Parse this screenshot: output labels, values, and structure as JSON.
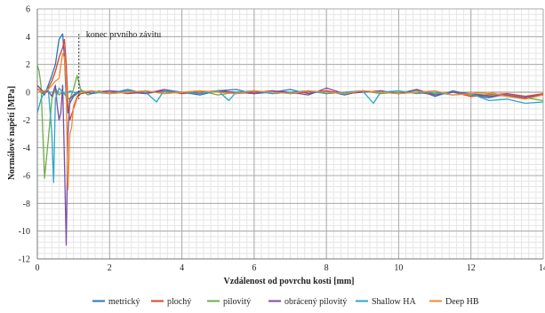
{
  "chart_data": {
    "type": "line",
    "title": "",
    "xlabel": "Vzdálenost od povrchu kosti [mm]",
    "ylabel": "Normálové napětí [MPa]",
    "xlim": [
      0,
      14
    ],
    "ylim": [
      -12,
      6
    ],
    "x_ticks": [
      "0",
      "2",
      "4",
      "6",
      "8",
      "10",
      "12",
      "14"
    ],
    "y_ticks": [
      "6",
      "4",
      "2",
      "0",
      "-2",
      "-4",
      "-6",
      "-8",
      "-10",
      "-12"
    ],
    "grid": true,
    "legend_position": "bottom",
    "annotation": {
      "text": "konec prvního závitu",
      "x": 1.15
    },
    "series": [
      {
        "name": "metrický",
        "color": "#2e75b6",
        "x": [
          0,
          0.1,
          0.2,
          0.3,
          0.4,
          0.5,
          0.6,
          0.7,
          0.75,
          0.8,
          0.85,
          0.9,
          1.0,
          1.1,
          1.2,
          1.5,
          2.0,
          2.5,
          3.0,
          3.5,
          4.0,
          4.5,
          5.0,
          5.5,
          6.0,
          6.5,
          7.0,
          7.5,
          8.0,
          8.5,
          9.0,
          9.5,
          10.0,
          10.5,
          11.0,
          11.5,
          12.0,
          12.5,
          13.0,
          13.5,
          14.0
        ],
        "values": [
          0.3,
          0.0,
          -0.2,
          0.5,
          1.2,
          2.0,
          3.8,
          4.2,
          2.5,
          -0.5,
          -1.5,
          -0.8,
          -0.3,
          -0.1,
          0.0,
          0.1,
          -0.1,
          0.2,
          -0.1,
          0.1,
          0.0,
          -0.2,
          0.1,
          0.2,
          -0.1,
          0.0,
          0.2,
          -0.1,
          0.1,
          -0.2,
          0.1,
          0.0,
          -0.1,
          0.2,
          -0.3,
          0.1,
          -0.2,
          -0.4,
          -0.1,
          -0.3,
          -0.2
        ]
      },
      {
        "name": "plochý",
        "color": "#e0402a",
        "x": [
          0,
          0.1,
          0.2,
          0.3,
          0.4,
          0.5,
          0.6,
          0.7,
          0.75,
          0.8,
          0.85,
          0.9,
          1.0,
          1.1,
          1.2,
          1.5,
          2.0,
          2.5,
          3.0,
          3.5,
          4.0,
          4.5,
          5.0,
          5.5,
          6.0,
          6.5,
          7.0,
          7.5,
          8.0,
          8.5,
          9.0,
          9.5,
          10.0,
          10.5,
          11.0,
          11.5,
          12.0,
          12.5,
          13.0,
          13.5,
          14.0
        ],
        "values": [
          0.2,
          0.1,
          -0.1,
          0.3,
          0.8,
          1.5,
          2.5,
          3.2,
          3.8,
          2.0,
          -1.0,
          -2.0,
          -1.2,
          -0.4,
          -0.1,
          0.0,
          0.1,
          -0.1,
          0.0,
          0.1,
          -0.1,
          0.0,
          0.1,
          -0.1,
          0.0,
          0.1,
          -0.1,
          0.0,
          0.1,
          -0.1,
          0.0,
          0.1,
          -0.1,
          0.0,
          -0.2,
          0.0,
          -0.3,
          -0.2,
          -0.1,
          -0.3,
          -0.1
        ]
      },
      {
        "name": "pilovitý",
        "color": "#70ad47",
        "x": [
          0,
          0.05,
          0.1,
          0.2,
          0.3,
          0.4,
          0.5,
          0.6,
          0.7,
          0.8,
          0.9,
          1.0,
          1.1,
          1.2,
          1.4,
          1.7,
          2.0,
          2.5,
          3.0,
          3.5,
          4.0,
          4.5,
          5.0,
          5.5,
          6.0,
          6.5,
          7.0,
          7.5,
          8.0,
          8.5,
          9.0,
          9.5,
          10.0,
          10.5,
          11.0,
          11.5,
          12.0,
          12.5,
          13.0,
          13.5,
          14.0
        ],
        "values": [
          2.0,
          1.5,
          0.5,
          -6.2,
          -3.5,
          -0.5,
          0.3,
          -0.2,
          0.0,
          -0.3,
          -0.5,
          0.2,
          1.2,
          0.2,
          -0.2,
          0.1,
          -0.1,
          0.0,
          0.1,
          -0.1,
          0.0,
          0.1,
          -0.2,
          0.0,
          0.1,
          -0.1,
          0.0,
          0.1,
          -0.1,
          0.0,
          0.1,
          -0.1,
          0.0,
          0.1,
          -0.1,
          0.0,
          -0.2,
          -0.1,
          -0.3,
          -0.4,
          -0.6
        ]
      },
      {
        "name": "obrácený pilovitý",
        "color": "#7b4ea3",
        "x": [
          0,
          0.1,
          0.2,
          0.3,
          0.4,
          0.5,
          0.55,
          0.6,
          0.65,
          0.7,
          0.75,
          0.8,
          0.85,
          0.9,
          1.0,
          1.1,
          1.2,
          1.5,
          2.0,
          2.5,
          3.0,
          3.5,
          4.0,
          4.5,
          5.0,
          5.5,
          6.0,
          6.5,
          7.0,
          7.5,
          8.0,
          8.5,
          9.0,
          9.5,
          10.0,
          10.5,
          11.0,
          11.5,
          12.0,
          12.5,
          13.0,
          13.5,
          14.0
        ],
        "values": [
          0.5,
          0.2,
          0.0,
          0.1,
          -0.3,
          0.5,
          -1.0,
          -2.0,
          -1.5,
          0.5,
          -5.0,
          -11.0,
          -3.0,
          -0.5,
          -0.2,
          0.0,
          0.1,
          -0.1,
          0.1,
          0.0,
          -0.1,
          0.2,
          0.0,
          -0.1,
          0.1,
          0.0,
          -0.1,
          0.1,
          0.0,
          -0.2,
          0.3,
          -0.1,
          0.0,
          0.1,
          -0.1,
          0.2,
          -0.2,
          0.0,
          -0.1,
          -0.3,
          -0.2,
          -0.4,
          -0.2
        ]
      },
      {
        "name": "Shallow HA",
        "color": "#2aa8c9",
        "x": [
          0,
          0.1,
          0.2,
          0.3,
          0.4,
          0.45,
          0.5,
          0.6,
          0.7,
          0.8,
          0.9,
          1.0,
          1.1,
          1.2,
          1.5,
          2.0,
          2.5,
          3.0,
          3.3,
          3.5,
          4.0,
          4.5,
          5.0,
          5.3,
          5.5,
          6.0,
          6.5,
          7.0,
          7.5,
          8.0,
          8.5,
          9.0,
          9.3,
          9.5,
          10.0,
          10.5,
          11.0,
          11.5,
          12.0,
          12.5,
          13.0,
          13.5,
          14.0
        ],
        "values": [
          -1.5,
          -0.5,
          0.0,
          0.3,
          -3.0,
          -6.5,
          -0.5,
          0.3,
          0.0,
          -0.2,
          0.1,
          0.0,
          -0.1,
          0.1,
          0.0,
          -0.1,
          0.1,
          0.0,
          -0.7,
          0.1,
          0.0,
          -0.1,
          0.1,
          -0.6,
          0.0,
          0.1,
          -0.1,
          0.0,
          0.1,
          -0.1,
          0.0,
          0.1,
          -0.8,
          0.0,
          0.1,
          -0.1,
          0.0,
          -0.2,
          -0.1,
          -0.6,
          -0.5,
          -0.8,
          -0.7
        ]
      },
      {
        "name": "Deep HB",
        "color": "#f08a30",
        "x": [
          0,
          0.1,
          0.2,
          0.3,
          0.4,
          0.5,
          0.6,
          0.7,
          0.75,
          0.8,
          0.85,
          0.9,
          0.95,
          1.0,
          1.1,
          1.2,
          1.5,
          2.0,
          2.5,
          3.0,
          3.5,
          4.0,
          4.5,
          5.0,
          5.5,
          6.0,
          6.5,
          7.0,
          7.5,
          8.0,
          8.5,
          9.0,
          9.5,
          10.0,
          10.5,
          11.0,
          11.5,
          12.0,
          12.5,
          13.0,
          13.5,
          14.0
        ],
        "values": [
          0.3,
          0.0,
          0.1,
          0.2,
          0.5,
          0.8,
          1.0,
          2.8,
          2.5,
          0.5,
          -7.0,
          -3.0,
          -2.5,
          -1.0,
          -0.3,
          0.0,
          0.1,
          -0.1,
          0.0,
          0.1,
          -0.1,
          0.0,
          0.1,
          0.0,
          -0.1,
          0.1,
          0.0,
          -0.1,
          0.1,
          0.0,
          -0.1,
          0.1,
          0.0,
          -0.1,
          0.0,
          0.1,
          -0.2,
          -0.1,
          0.0,
          -0.3,
          -0.5,
          -0.2
        ]
      }
    ]
  }
}
